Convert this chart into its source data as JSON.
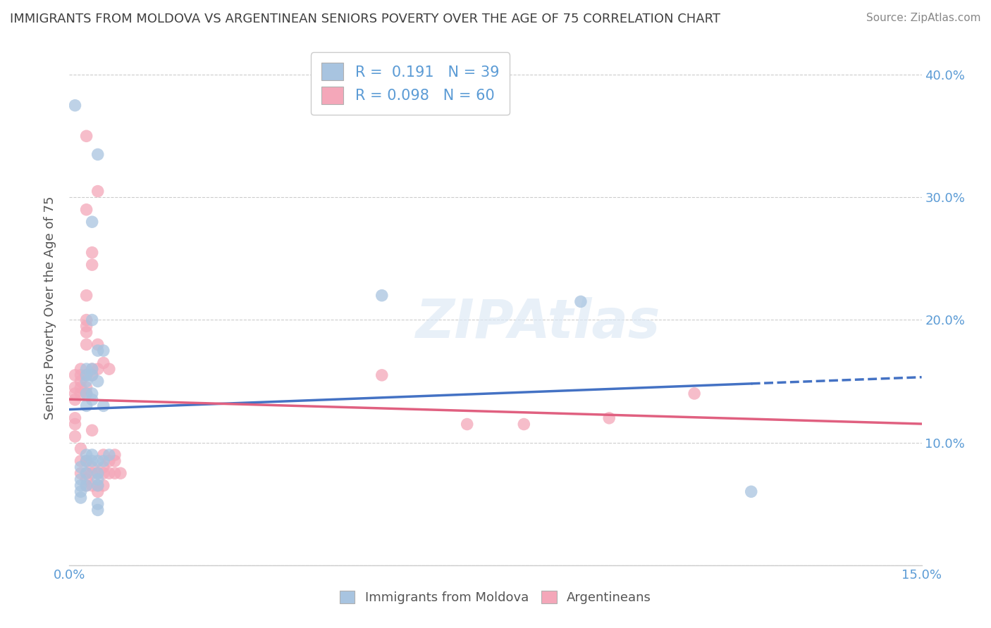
{
  "title": "IMMIGRANTS FROM MOLDOVA VS ARGENTINEAN SENIORS POVERTY OVER THE AGE OF 75 CORRELATION CHART",
  "source": "Source: ZipAtlas.com",
  "ylabel": "Seniors Poverty Over the Age of 75",
  "xlabel_blue": "Immigrants from Moldova",
  "xlabel_pink": "Argentineans",
  "xlim": [
    0.0,
    0.15
  ],
  "ylim": [
    0.0,
    0.42
  ],
  "xticks": [
    0.0,
    0.03,
    0.06,
    0.09,
    0.12,
    0.15
  ],
  "yticks": [
    0.0,
    0.1,
    0.2,
    0.3,
    0.4
  ],
  "blue_R": 0.191,
  "blue_N": 39,
  "pink_R": 0.098,
  "pink_N": 60,
  "blue_color": "#a8c4e0",
  "pink_color": "#f4a7b9",
  "blue_line_color": "#4472c4",
  "pink_line_color": "#e06080",
  "blue_scatter": [
    [
      0.001,
      0.375
    ],
    [
      0.002,
      0.08
    ],
    [
      0.002,
      0.07
    ],
    [
      0.002,
      0.065
    ],
    [
      0.002,
      0.06
    ],
    [
      0.002,
      0.055
    ],
    [
      0.003,
      0.16
    ],
    [
      0.003,
      0.155
    ],
    [
      0.003,
      0.15
    ],
    [
      0.003,
      0.14
    ],
    [
      0.003,
      0.13
    ],
    [
      0.003,
      0.09
    ],
    [
      0.003,
      0.085
    ],
    [
      0.003,
      0.075
    ],
    [
      0.003,
      0.065
    ],
    [
      0.004,
      0.28
    ],
    [
      0.004,
      0.2
    ],
    [
      0.004,
      0.16
    ],
    [
      0.004,
      0.155
    ],
    [
      0.004,
      0.14
    ],
    [
      0.004,
      0.135
    ],
    [
      0.004,
      0.09
    ],
    [
      0.004,
      0.085
    ],
    [
      0.005,
      0.335
    ],
    [
      0.005,
      0.175
    ],
    [
      0.005,
      0.15
    ],
    [
      0.005,
      0.085
    ],
    [
      0.005,
      0.075
    ],
    [
      0.005,
      0.07
    ],
    [
      0.005,
      0.065
    ],
    [
      0.005,
      0.05
    ],
    [
      0.005,
      0.045
    ],
    [
      0.006,
      0.175
    ],
    [
      0.006,
      0.13
    ],
    [
      0.006,
      0.085
    ],
    [
      0.007,
      0.09
    ],
    [
      0.055,
      0.22
    ],
    [
      0.09,
      0.215
    ],
    [
      0.12,
      0.06
    ]
  ],
  "pink_scatter": [
    [
      0.001,
      0.155
    ],
    [
      0.001,
      0.145
    ],
    [
      0.001,
      0.14
    ],
    [
      0.001,
      0.135
    ],
    [
      0.001,
      0.12
    ],
    [
      0.001,
      0.115
    ],
    [
      0.001,
      0.105
    ],
    [
      0.002,
      0.16
    ],
    [
      0.002,
      0.155
    ],
    [
      0.002,
      0.15
    ],
    [
      0.002,
      0.145
    ],
    [
      0.002,
      0.14
    ],
    [
      0.002,
      0.095
    ],
    [
      0.002,
      0.085
    ],
    [
      0.002,
      0.075
    ],
    [
      0.003,
      0.35
    ],
    [
      0.003,
      0.29
    ],
    [
      0.003,
      0.22
    ],
    [
      0.003,
      0.2
    ],
    [
      0.003,
      0.195
    ],
    [
      0.003,
      0.19
    ],
    [
      0.003,
      0.18
    ],
    [
      0.003,
      0.155
    ],
    [
      0.003,
      0.145
    ],
    [
      0.003,
      0.14
    ],
    [
      0.003,
      0.085
    ],
    [
      0.003,
      0.075
    ],
    [
      0.003,
      0.07
    ],
    [
      0.003,
      0.065
    ],
    [
      0.004,
      0.255
    ],
    [
      0.004,
      0.245
    ],
    [
      0.004,
      0.16
    ],
    [
      0.004,
      0.155
    ],
    [
      0.004,
      0.11
    ],
    [
      0.004,
      0.08
    ],
    [
      0.004,
      0.075
    ],
    [
      0.004,
      0.065
    ],
    [
      0.005,
      0.305
    ],
    [
      0.005,
      0.18
    ],
    [
      0.005,
      0.16
    ],
    [
      0.005,
      0.075
    ],
    [
      0.005,
      0.065
    ],
    [
      0.005,
      0.06
    ],
    [
      0.006,
      0.165
    ],
    [
      0.006,
      0.09
    ],
    [
      0.006,
      0.08
    ],
    [
      0.006,
      0.075
    ],
    [
      0.006,
      0.065
    ],
    [
      0.007,
      0.16
    ],
    [
      0.007,
      0.085
    ],
    [
      0.007,
      0.075
    ],
    [
      0.008,
      0.09
    ],
    [
      0.008,
      0.085
    ],
    [
      0.008,
      0.075
    ],
    [
      0.009,
      0.075
    ],
    [
      0.055,
      0.155
    ],
    [
      0.07,
      0.115
    ],
    [
      0.08,
      0.115
    ],
    [
      0.095,
      0.12
    ],
    [
      0.11,
      0.14
    ]
  ],
  "watermark": "ZIPAtlas",
  "background_color": "#ffffff",
  "grid_color": "#cccccc",
  "tick_color": "#5b9bd5",
  "label_color": "#555555",
  "title_color": "#404040",
  "source_color": "#888888"
}
